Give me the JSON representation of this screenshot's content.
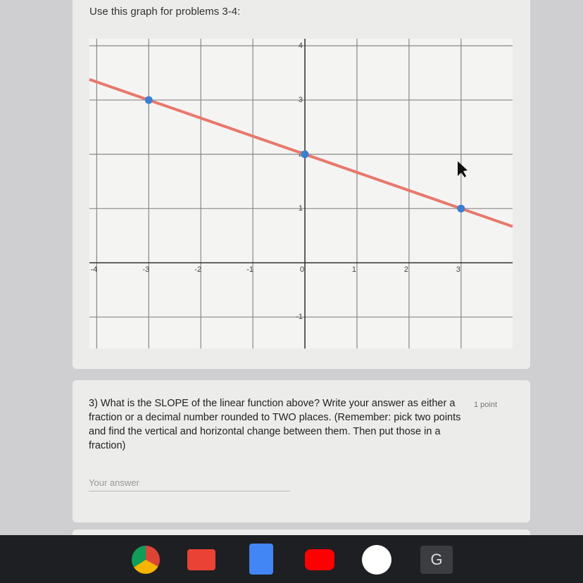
{
  "intro": "Use this graph for problems 3-4:",
  "chart_data": {
    "type": "line",
    "series": [
      {
        "color": "#e8786c",
        "x": [
          -4.14,
          3.99
        ],
        "values": [
          3.38,
          0.67
        ]
      },
      {
        "color": "#3a7fd0",
        "x": [
          -3,
          0,
          3
        ],
        "values": [
          3,
          2,
          1
        ],
        "markers": true
      }
    ],
    "xlim": [
      -4.14,
      3.99
    ],
    "ylim": [
      -1.58,
      4.13
    ],
    "xticks": [
      -4,
      -3,
      -2,
      -1,
      0,
      1,
      2,
      3
    ],
    "yticks": [
      -1,
      1,
      2,
      3,
      4
    ],
    "grid": true
  },
  "question": {
    "text": "3) What is the SLOPE of the linear function above? Write your answer as either a fraction or a decimal number rounded to TWO places. (Remember: pick two points and find the vertical and horizontal change between them. Then put those in a fraction)",
    "points": "1 point",
    "placeholder": "Your answer"
  },
  "taskbar": {
    "app_label": "G"
  }
}
